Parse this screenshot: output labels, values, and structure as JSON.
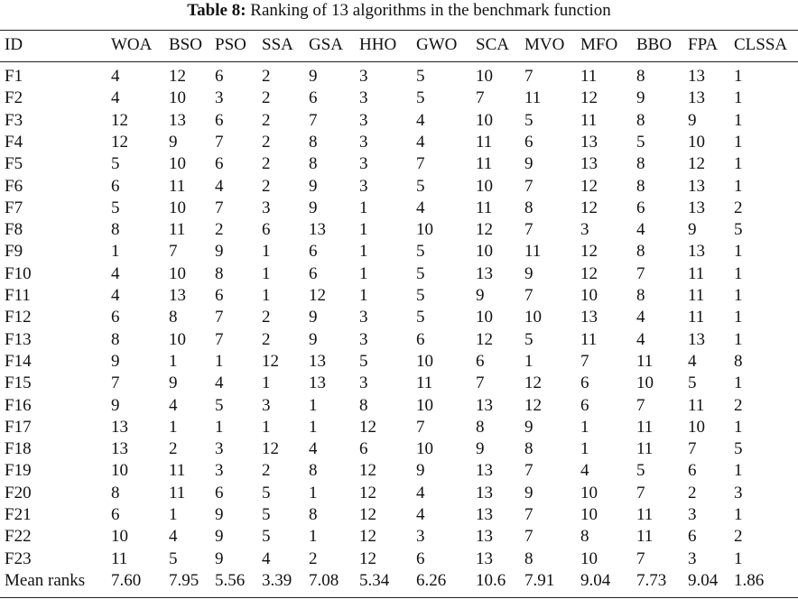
{
  "caption": {
    "label": "Table 8:",
    "text": "Ranking of 13 algorithms in the benchmark function"
  },
  "table": {
    "header": [
      "ID",
      "WOA",
      "BSO",
      "PSO",
      "SSA",
      "GSA",
      "HHO",
      "GWO",
      "SCA",
      "MVO",
      "MFO",
      "BBO",
      "FPA",
      "CLSSA"
    ],
    "rows": [
      [
        "F1",
        "4",
        "12",
        "6",
        "2",
        "9",
        "3",
        "5",
        "10",
        "7",
        "11",
        "8",
        "13",
        "1"
      ],
      [
        "F2",
        "4",
        "10",
        "3",
        "2",
        "6",
        "3",
        "5",
        "7",
        "11",
        "12",
        "9",
        "13",
        "1"
      ],
      [
        "F3",
        "12",
        "13",
        "6",
        "2",
        "7",
        "3",
        "4",
        "10",
        "5",
        "11",
        "8",
        "9",
        "1"
      ],
      [
        "F4",
        "12",
        "9",
        "7",
        "2",
        "8",
        "3",
        "4",
        "11",
        "6",
        "13",
        "5",
        "10",
        "1"
      ],
      [
        "F5",
        "5",
        "10",
        "6",
        "2",
        "8",
        "3",
        "7",
        "11",
        "9",
        "13",
        "8",
        "12",
        "1"
      ],
      [
        "F6",
        "6",
        "11",
        "4",
        "2",
        "9",
        "3",
        "5",
        "10",
        "7",
        "12",
        "8",
        "13",
        "1"
      ],
      [
        "F7",
        "5",
        "10",
        "7",
        "3",
        "9",
        "1",
        "4",
        "11",
        "8",
        "12",
        "6",
        "13",
        "2"
      ],
      [
        "F8",
        "8",
        "11",
        "2",
        "6",
        "13",
        "1",
        "10",
        "12",
        "7",
        "3",
        "4",
        "9",
        "5"
      ],
      [
        "F9",
        "1",
        "7",
        "9",
        "1",
        "6",
        "1",
        "5",
        "10",
        "11",
        "12",
        "8",
        "13",
        "1"
      ],
      [
        "F10",
        "4",
        "10",
        "8",
        "1",
        "6",
        "1",
        "5",
        "13",
        "9",
        "12",
        "7",
        "11",
        "1"
      ],
      [
        "F11",
        "4",
        "13",
        "6",
        "1",
        "12",
        "1",
        "5",
        "9",
        "7",
        "10",
        "8",
        "11",
        "1"
      ],
      [
        "F12",
        "6",
        "8",
        "7",
        "2",
        "9",
        "3",
        "5",
        "10",
        "10",
        "13",
        "4",
        "11",
        "1"
      ],
      [
        "F13",
        "8",
        "10",
        "7",
        "2",
        "9",
        "3",
        "6",
        "12",
        "5",
        "11",
        "4",
        "13",
        "1"
      ],
      [
        "F14",
        "9",
        "1",
        "1",
        "12",
        "13",
        "5",
        "10",
        "6",
        "1",
        "7",
        "11",
        "4",
        "8"
      ],
      [
        "F15",
        "7",
        "9",
        "4",
        "1",
        "13",
        "3",
        "11",
        "7",
        "12",
        "6",
        "10",
        "5",
        "1"
      ],
      [
        "F16",
        "9",
        "4",
        "5",
        "3",
        "1",
        "8",
        "10",
        "13",
        "12",
        "6",
        "7",
        "11",
        "2"
      ],
      [
        "F17",
        "13",
        "1",
        "1",
        "1",
        "1",
        "12",
        "7",
        "8",
        "9",
        "1",
        "11",
        "10",
        "1"
      ],
      [
        "F18",
        "13",
        "2",
        "3",
        "12",
        "4",
        "6",
        "10",
        "9",
        "8",
        "1",
        "11",
        "7",
        "5"
      ],
      [
        "F19",
        "10",
        "11",
        "3",
        "2",
        "8",
        "12",
        "9",
        "13",
        "7",
        "4",
        "5",
        "6",
        "1"
      ],
      [
        "F20",
        "8",
        "11",
        "6",
        "5",
        "1",
        "12",
        "4",
        "13",
        "9",
        "10",
        "7",
        "2",
        "3"
      ],
      [
        "F21",
        "6",
        "1",
        "9",
        "5",
        "8",
        "12",
        "4",
        "13",
        "7",
        "10",
        "11",
        "3",
        "1"
      ],
      [
        "F22",
        "10",
        "4",
        "9",
        "5",
        "1",
        "12",
        "3",
        "13",
        "7",
        "8",
        "11",
        "6",
        "2"
      ],
      [
        "F23",
        "11",
        "5",
        "9",
        "4",
        "2",
        "12",
        "6",
        "13",
        "8",
        "10",
        "7",
        "3",
        "1"
      ],
      [
        "Mean ranks",
        "7.60",
        "7.95",
        "5.56",
        "3.39",
        "7.08",
        "5.34",
        "6.26",
        "10.6",
        "7.91",
        "9.04",
        "7.73",
        "9.04",
        "1.86"
      ]
    ]
  }
}
